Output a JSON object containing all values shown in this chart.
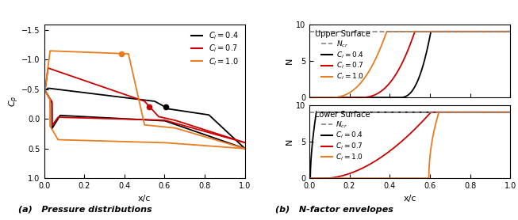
{
  "colors": {
    "cl04": "#000000",
    "cl07": "#cc0000",
    "cl10": "#e87c1e"
  },
  "cp_xlim": [
    0.0,
    1.0
  ],
  "cp_ylim": [
    1.0,
    -1.6
  ],
  "cp_xticks": [
    0.0,
    0.2,
    0.4,
    0.6,
    0.8,
    1.0
  ],
  "cp_yticks": [
    -1.5,
    -1.0,
    -0.5,
    0.0,
    0.5,
    1.0
  ],
  "nf_xlim": [
    0.0,
    1.0
  ],
  "nf_ylim": [
    0,
    10
  ],
  "nf_xticks": [
    0.0,
    0.2,
    0.4,
    0.6,
    0.8,
    1.0
  ],
  "nf_yticks": [
    0,
    5,
    10
  ],
  "ncr": 9,
  "xlabel_cp": "x/c",
  "ylabel_cp": "$C_p$",
  "xlabel_nf": "x/c",
  "ylabel_nf": "N",
  "caption_a": "(a)   Pressure distributions",
  "caption_b": "(b)   N-factor envelopes",
  "legend_upper": "Upper Surface",
  "legend_lower": "Lower Surface",
  "legend_ncr": "$N_{cr}$",
  "legend_cl04": "$C_l = 0.4$",
  "legend_cl07": "$C_l = 0.7$",
  "legend_cl10": "$C_l = 1.0$"
}
